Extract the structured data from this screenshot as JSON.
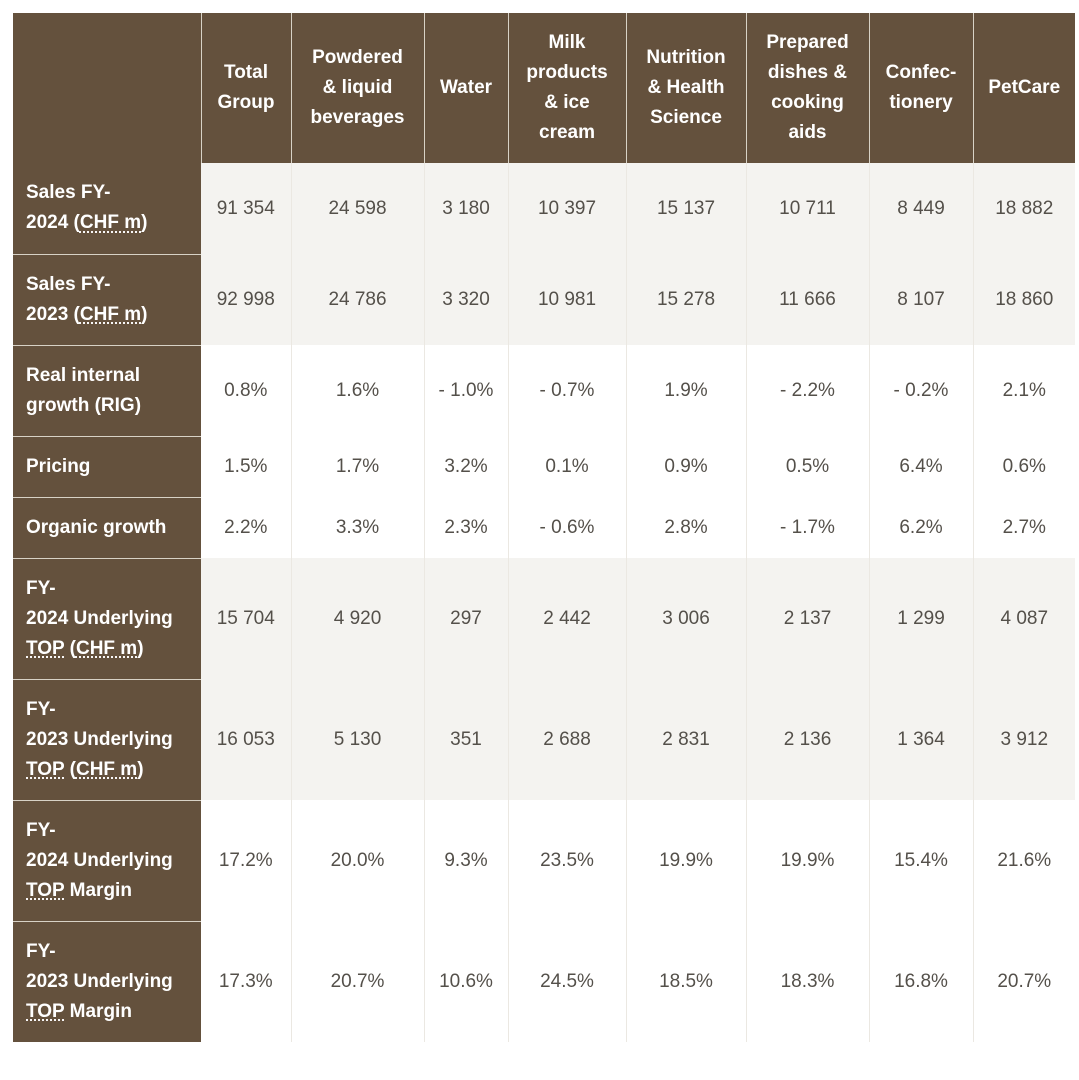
{
  "table": {
    "columns": [
      "Total Group",
      "Powdered & liquid beverages",
      "Water",
      "Milk products & ice cream",
      "Nutrition & Health Science",
      "Prepared dishes & cooking aids",
      "Confec-tionery",
      "PetCare"
    ],
    "rows": [
      {
        "label_line1": "Sales FY-",
        "label_line2": "2024 (",
        "label_abbr": "CHF m",
        "label_suffix": ")",
        "values": [
          "91 354",
          "24 598",
          "3 180",
          "10 397",
          "15 137",
          "10 711",
          "8 449",
          "18 882"
        ]
      },
      {
        "label_line1": "Sales FY-",
        "label_line2": "2023 (",
        "label_abbr": "CHF m",
        "label_suffix": ")",
        "values": [
          "92 998",
          "24 786",
          "3 320",
          "10 981",
          "15 278",
          "11 666",
          "8 107",
          "18 860"
        ]
      },
      {
        "label_line1": "Real internal",
        "label_line2": "growth (RIG)",
        "values": [
          "0.8%",
          "1.6%",
          "- 1.0%",
          "- 0.7%",
          "1.9%",
          "- 2.2%",
          "- 0.2%",
          "2.1%"
        ]
      },
      {
        "label_line1": "Pricing",
        "values": [
          "1.5%",
          "1.7%",
          "3.2%",
          "0.1%",
          "0.9%",
          "0.5%",
          "6.4%",
          "0.6%"
        ]
      },
      {
        "label_line1": "Organic growth",
        "values": [
          "2.2%",
          "3.3%",
          "2.3%",
          "- 0.6%",
          "2.8%",
          "- 1.7%",
          "6.2%",
          "2.7%"
        ]
      },
      {
        "label_line1": "FY-",
        "label_line2": "2024 Underlying",
        "label_abbr1": "TOP",
        "label_mid": " (",
        "label_abbr2": "CHF m",
        "label_suffix": ")",
        "values": [
          "15 704",
          "4 920",
          "297",
          "2 442",
          "3 006",
          "2 137",
          "1 299",
          "4 087"
        ]
      },
      {
        "label_line1": "FY-",
        "label_line2": "2023 Underlying",
        "label_abbr1": "TOP",
        "label_mid": " (",
        "label_abbr2": "CHF m",
        "label_suffix": ")",
        "values": [
          "16 053",
          "5 130",
          "351",
          "2 688",
          "2 831",
          "2 136",
          "1 364",
          "3 912"
        ]
      },
      {
        "label_line1": "FY-",
        "label_line2": "2024 Underlying",
        "label_abbr1": "TOP",
        "label_rest": " Margin",
        "values": [
          "17.2%",
          "20.0%",
          "9.3%",
          "23.5%",
          "19.9%",
          "19.9%",
          "15.4%",
          "21.6%"
        ]
      },
      {
        "label_line1": "FY-",
        "label_line2": "2023 Underlying",
        "label_abbr1": "TOP",
        "label_rest": " Margin",
        "values": [
          "17.3%",
          "20.7%",
          "10.6%",
          "24.5%",
          "18.5%",
          "18.3%",
          "16.8%",
          "20.7%"
        ]
      }
    ]
  },
  "colors": {
    "header_bg": "#64513d",
    "header_text": "#ffffff",
    "shaded_row_bg": "#f4f3f0",
    "cell_text": "#54504a"
  }
}
